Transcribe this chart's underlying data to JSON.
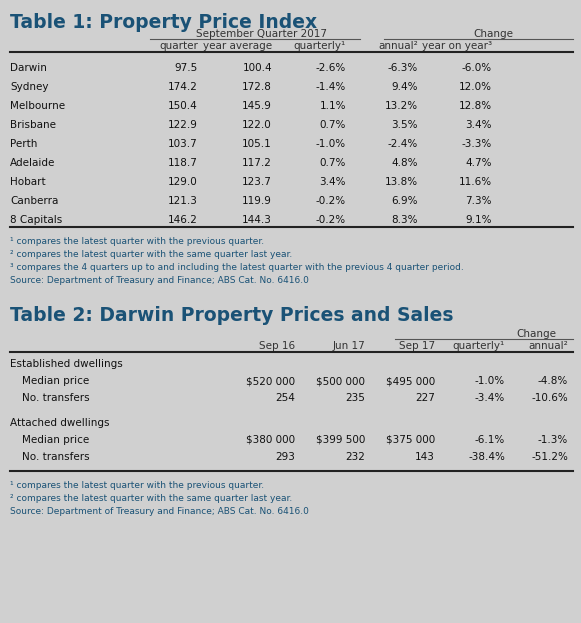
{
  "bg_color": "#d0d0d0",
  "title_color": "#1a5276",
  "header_color": "#333333",
  "text_color": "#111111",
  "note_color": "#1a5276",
  "source_color": "#1a5276",
  "line_color": "#555555",
  "table1_title": "Table 1: Property Price Index",
  "table1_col_group1": "September Quarter 2017",
  "table1_col_group2": "Change",
  "table1_col_headers": [
    "quarter",
    "year average",
    "quarterly¹",
    "annual²",
    "year on year³"
  ],
  "table1_rows": [
    [
      "Darwin",
      "97.5",
      "100.4",
      "-2.6%",
      "-6.3%",
      "-6.0%"
    ],
    [
      "Sydney",
      "174.2",
      "172.8",
      "-1.4%",
      "9.4%",
      "12.0%"
    ],
    [
      "Melbourne",
      "150.4",
      "145.9",
      "1.1%",
      "13.2%",
      "12.8%"
    ],
    [
      "Brisbane",
      "122.9",
      "122.0",
      "0.7%",
      "3.5%",
      "3.4%"
    ],
    [
      "Perth",
      "103.7",
      "105.1",
      "-1.0%",
      "-2.4%",
      "-3.3%"
    ],
    [
      "Adelaide",
      "118.7",
      "117.2",
      "0.7%",
      "4.8%",
      "4.7%"
    ],
    [
      "Hobart",
      "129.0",
      "123.7",
      "3.4%",
      "13.8%",
      "11.6%"
    ],
    [
      "Canberra",
      "121.3",
      "119.9",
      "-0.2%",
      "6.9%",
      "7.3%"
    ],
    [
      "8 Capitals",
      "146.2",
      "144.3",
      "-0.2%",
      "8.3%",
      "9.1%"
    ]
  ],
  "table1_notes": [
    "¹ compares the latest quarter with the previous quarter.",
    "² compares the latest quarter with the same quarter last year.",
    "³ compares the 4 quarters up to and including the latest quarter with the previous 4 quarter period."
  ],
  "table1_source": "Source: Department of Treasury and Finance; ABS Cat. No. 6416.0",
  "table2_title": "Table 2: Darwin Property Prices and Sales",
  "table2_col_group": "Change",
  "table2_col_headers": [
    "Sep 16",
    "Jun 17",
    "Sep 17",
    "quarterly¹",
    "annual²"
  ],
  "table2_sections": [
    {
      "section_label": "Established dwellings",
      "rows": [
        [
          "Median price",
          "$520 000",
          "$500 000",
          "$495 000",
          "-1.0%",
          "-4.8%"
        ],
        [
          "No. transfers",
          "254",
          "235",
          "227",
          "-3.4%",
          "-10.6%"
        ]
      ]
    },
    {
      "section_label": "Attached dwellings",
      "rows": [
        [
          "Median price",
          "$380 000",
          "$399 500",
          "$375 000",
          "-6.1%",
          "-1.3%"
        ],
        [
          "No. transfers",
          "293",
          "232",
          "143",
          "-38.4%",
          "-51.2%"
        ]
      ]
    }
  ],
  "table2_notes": [
    "¹ compares the latest quarter with the previous quarter.",
    "² compares the latest quarter with the same quarter last year."
  ],
  "table2_source": "Source: Department of Treasury and Finance; ABS Cat. No. 6416.0"
}
